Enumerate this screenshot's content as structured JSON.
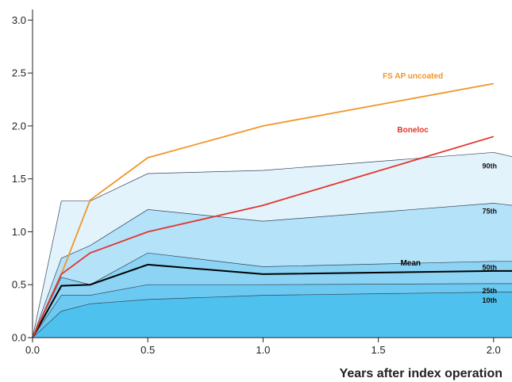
{
  "chart_data": {
    "type": "area",
    "xlabel": "Years after index operation",
    "ylabel": "",
    "xlim": [
      0,
      2.08
    ],
    "ylim": [
      0,
      3.1
    ],
    "x_ticks": [
      "0.0",
      "0.5",
      "1.0",
      "1.5",
      "2.0"
    ],
    "y_ticks": [
      "0.0",
      "0.5",
      "1.0",
      "1.5",
      "2.0",
      "2.5",
      "3.0"
    ],
    "grid": false,
    "percentile_bands": [
      {
        "name": "90th",
        "x": [
          0,
          0.125,
          0.25,
          0.5,
          1.0,
          2.0,
          2.08
        ],
        "values": [
          0,
          1.29,
          1.29,
          1.55,
          1.58,
          1.75,
          1.71
        ]
      },
      {
        "name": "75th",
        "x": [
          0,
          0.125,
          0.25,
          0.5,
          1.0,
          2.0,
          2.08
        ],
        "values": [
          0,
          0.75,
          0.87,
          1.21,
          1.1,
          1.27,
          1.25
        ]
      },
      {
        "name": "50th",
        "x": [
          0,
          0.125,
          0.25,
          0.5,
          1.0,
          2.0,
          2.08
        ],
        "values": [
          0,
          0.57,
          0.5,
          0.8,
          0.67,
          0.72,
          0.72
        ]
      },
      {
        "name": "25th",
        "x": [
          0,
          0.125,
          0.25,
          0.5,
          1.0,
          2.0,
          2.08
        ],
        "values": [
          0,
          0.4,
          0.4,
          0.5,
          0.5,
          0.51,
          0.51
        ]
      },
      {
        "name": "10th",
        "x": [
          0,
          0.125,
          0.25,
          0.5,
          1.0,
          2.0,
          2.08
        ],
        "values": [
          0,
          0.25,
          0.32,
          0.36,
          0.4,
          0.43,
          0.43
        ]
      }
    ],
    "series": [
      {
        "name": "Mean",
        "color": "#000000",
        "x": [
          0,
          0.125,
          0.25,
          0.5,
          1.0,
          2.0,
          2.08
        ],
        "values": [
          0,
          0.49,
          0.5,
          0.69,
          0.6,
          0.63,
          0.63
        ]
      },
      {
        "name": "FS AP uncoated",
        "color": "#f0962a",
        "x": [
          0,
          0.125,
          0.25,
          0.5,
          1.0,
          2.0
        ],
        "values": [
          0,
          0.6,
          1.3,
          1.7,
          2.0,
          2.4
        ]
      },
      {
        "name": "Boneloc",
        "color": "#e2342c",
        "x": [
          0,
          0.125,
          0.25,
          0.5,
          1.0,
          2.0
        ],
        "values": [
          0,
          0.6,
          0.8,
          1.0,
          1.25,
          1.9
        ]
      }
    ],
    "band_fills": [
      "#e3f3fc",
      "#b4e2f8",
      "#8dd3f4",
      "#6ccaf2",
      "#4fc1ee"
    ]
  }
}
